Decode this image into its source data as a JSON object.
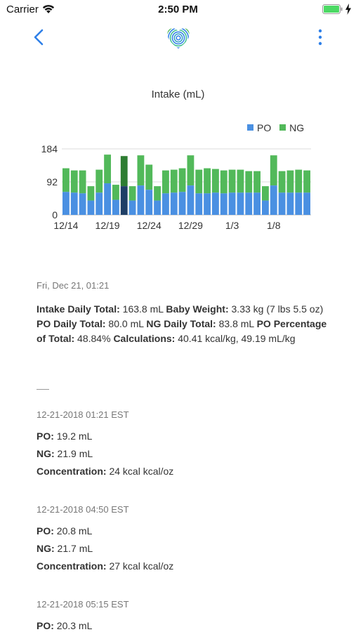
{
  "status_bar": {
    "carrier": "Carrier",
    "time": "2:50 PM",
    "battery_color": "#4cd964"
  },
  "nav": {
    "back_icon": "chevron-left-icon",
    "logo_icon": "fingerprint-heart-logo",
    "more_icon": "vertical-ellipsis-icon",
    "accent_color": "#2f80e8"
  },
  "chart_data": {
    "type": "bar",
    "stacked": true,
    "title": "Intake (mL)",
    "xlabel": "",
    "ylabel": "",
    "ylim": [
      0,
      184
    ],
    "yticks": [
      0,
      92,
      184
    ],
    "xtick_labels": [
      "12/14",
      "12/19",
      "12/24",
      "12/29",
      "1/3",
      "1/8"
    ],
    "legend_position": "top-right",
    "grid": true,
    "selected_index": 7,
    "categories": [
      "12/14",
      "12/15",
      "12/16",
      "12/17",
      "12/18",
      "12/19",
      "12/20",
      "12/21",
      "12/22",
      "12/23",
      "12/24",
      "12/25",
      "12/26",
      "12/27",
      "12/28",
      "12/29",
      "12/30",
      "12/31",
      "1/1",
      "1/2",
      "1/3",
      "1/4",
      "1/5",
      "1/6",
      "1/7",
      "1/8",
      "1/9",
      "1/10",
      "1/11",
      "1/12"
    ],
    "series": [
      {
        "name": "PO",
        "color": "#4a90e2",
        "values": [
          64,
          62,
          60,
          40,
          62,
          88,
          42,
          80,
          40,
          82,
          70,
          40,
          60,
          62,
          64,
          82,
          60,
          60,
          62,
          60,
          62,
          62,
          62,
          62,
          40,
          82,
          62,
          62,
          62,
          62
        ]
      },
      {
        "name": "NG",
        "color": "#52b95a",
        "values": [
          66,
          62,
          64,
          40,
          64,
          80,
          42,
          84,
          40,
          84,
          70,
          40,
          64,
          64,
          66,
          84,
          66,
          70,
          66,
          64,
          64,
          64,
          60,
          60,
          40,
          84,
          60,
          62,
          64,
          62
        ]
      }
    ]
  },
  "detail": {
    "date": "Fri, Dec 21, 01:21",
    "summary": {
      "intake_label": "Intake Daily Total:",
      "intake_value": " 163.8 mL ",
      "weight_label": "Baby Weight:",
      "weight_value": " 3.33 kg (7 lbs 5.5 oz)",
      "po_label": "PO Daily Total:",
      "po_value": " 80.0 mL ",
      "ng_label": "NG Daily Total:",
      "ng_value": " 83.8 mL ",
      "pct_label": "PO Percentage of Total:",
      "pct_value": " 48.84% ",
      "calc_label": "Calculations:",
      "calc_value": " 40.41 kcal/kg, 49.19 mL/kg"
    },
    "entries": [
      {
        "time": "12-21-2018 01:21 EST",
        "po_label": "PO:",
        "po_value": " 19.2 mL",
        "ng_label": "NG:",
        "ng_value": " 21.9 mL",
        "conc_label": "Concentration:",
        "conc_value": " 24 kcal kcal/oz"
      },
      {
        "time": "12-21-2018 04:50 EST",
        "po_label": "PO:",
        "po_value": " 20.8 mL",
        "ng_label": "NG:",
        "ng_value": " 21.7 mL",
        "conc_label": "Concentration:",
        "conc_value": " 27 kcal kcal/oz"
      },
      {
        "time": "12-21-2018 05:15 EST",
        "po_label": "PO:",
        "po_value": " 20.3 mL"
      }
    ]
  }
}
